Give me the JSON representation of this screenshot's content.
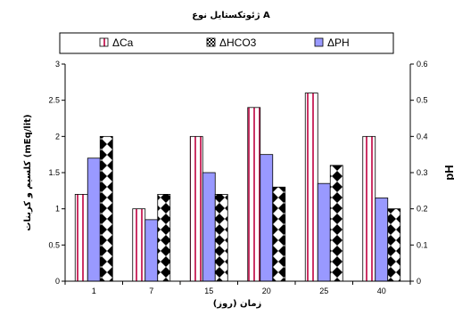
{
  "chart_data": {
    "type": "bar",
    "title": "ژئوتکستایل نوع A",
    "xlabel": "زمان (روز)",
    "ylabel": "کلسیم و کربنات (mEq/lit)",
    "y2label": "pH",
    "categories": [
      "1",
      "7",
      "15",
      "20",
      "25",
      "40"
    ],
    "ylim": [
      0,
      3
    ],
    "y_ticks": [
      "0",
      "0.5",
      "1",
      "1.5",
      "2",
      "2.5",
      "3"
    ],
    "y2lim": [
      0,
      0.6
    ],
    "y2_ticks": [
      "0",
      "0.1",
      "0.2",
      "0.3",
      "0.4",
      "0.5",
      "0.6"
    ],
    "legend_position": "top",
    "series": [
      {
        "name": "ΔCa",
        "axis": "left",
        "values": [
          1.2,
          1.0,
          2.0,
          2.4,
          2.6,
          2.0
        ],
        "pattern": "vertical-stripes",
        "color": "#cc3366"
      },
      {
        "name": "ΔHCO3",
        "axis": "left",
        "values": [
          2.0,
          1.2,
          1.2,
          1.3,
          1.6,
          1.0
        ],
        "pattern": "diamonds",
        "color": "#000000"
      },
      {
        "name": "ΔPH",
        "axis": "right",
        "values": [
          0.34,
          0.17,
          0.3,
          0.35,
          0.27,
          0.23
        ],
        "pattern": "solid",
        "color": "#9999ff"
      }
    ],
    "bar_order": [
      "ΔCa",
      "ΔPH",
      "ΔHCO3"
    ],
    "grid": false
  }
}
